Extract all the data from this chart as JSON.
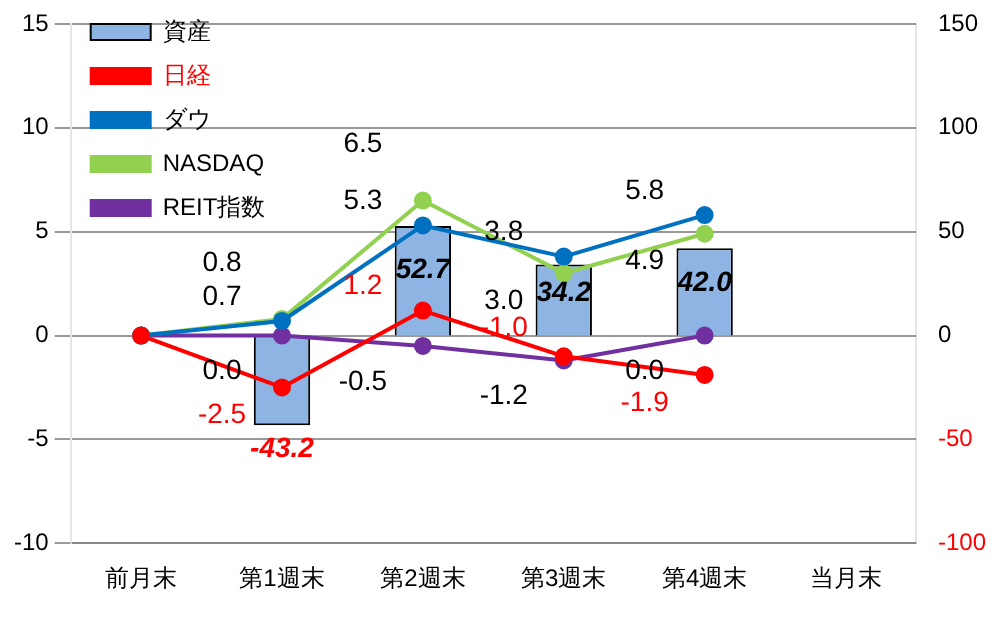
{
  "chart_data": {
    "type": "bar",
    "categories": [
      "前月末",
      "第1週末",
      "第2週末",
      "第3週末",
      "第4週末",
      "当月末"
    ],
    "series": [
      {
        "name": "資産",
        "axis": "y2",
        "color": "#8eb4e3",
        "values": [
          null,
          -43.2,
          52.7,
          34.2,
          42.0,
          null
        ],
        "value_labels": [
          null,
          "-43.2",
          "52.7",
          "34.2",
          "42.0",
          null
        ]
      },
      {
        "name": "日経",
        "type": "line",
        "color": "#ff0000",
        "values": [
          0,
          -2.5,
          1.2,
          -1.0,
          -1.9,
          null
        ],
        "value_labels": [
          null,
          "-2.5",
          "1.2",
          "-1.0",
          "-1.9",
          null
        ]
      },
      {
        "name": "ダウ",
        "type": "line",
        "color": "#0070c0",
        "values": [
          0,
          0.7,
          5.3,
          3.8,
          5.8,
          null
        ],
        "value_labels": [
          null,
          "0.7",
          "5.3",
          "3.8",
          "5.8",
          null
        ]
      },
      {
        "name": "NASDAQ",
        "type": "line",
        "color": "#92d050",
        "values": [
          0,
          0.8,
          6.5,
          3.0,
          4.9,
          null
        ],
        "value_labels": [
          null,
          "0.8",
          "6.5",
          "3.0",
          "4.9",
          null
        ]
      },
      {
        "name": "REIT指数",
        "type": "line",
        "color": "#7030a0",
        "values": [
          0,
          0.0,
          -0.5,
          -1.2,
          0.0,
          null
        ],
        "value_labels": [
          null,
          "0.0",
          "-0.5",
          "-1.2",
          "0.0",
          null
        ]
      }
    ],
    "ylim": [
      -10,
      15
    ],
    "yticks": [
      -10,
      -5,
      0,
      5,
      10,
      15
    ],
    "y2lim": [
      -100,
      150
    ],
    "y2ticks": [
      -100,
      -50,
      0,
      50,
      100,
      150
    ],
    "grid": "y",
    "legend": "top left",
    "marker": "circle"
  }
}
